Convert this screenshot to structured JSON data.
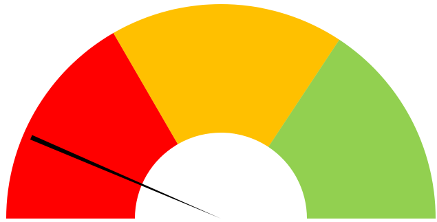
{
  "chart_data": {
    "type": "gauge",
    "min": 0,
    "max": 100,
    "value": 12.9,
    "bands": [
      {
        "from": 0,
        "to": 33.3,
        "color": "#FF0000"
      },
      {
        "from": 33.3,
        "to": 68.6,
        "color": "#FFC000"
      },
      {
        "from": 68.6,
        "to": 100,
        "color": "#92D050"
      }
    ],
    "needle_color": "#000000",
    "background": "#FFFFFF"
  }
}
